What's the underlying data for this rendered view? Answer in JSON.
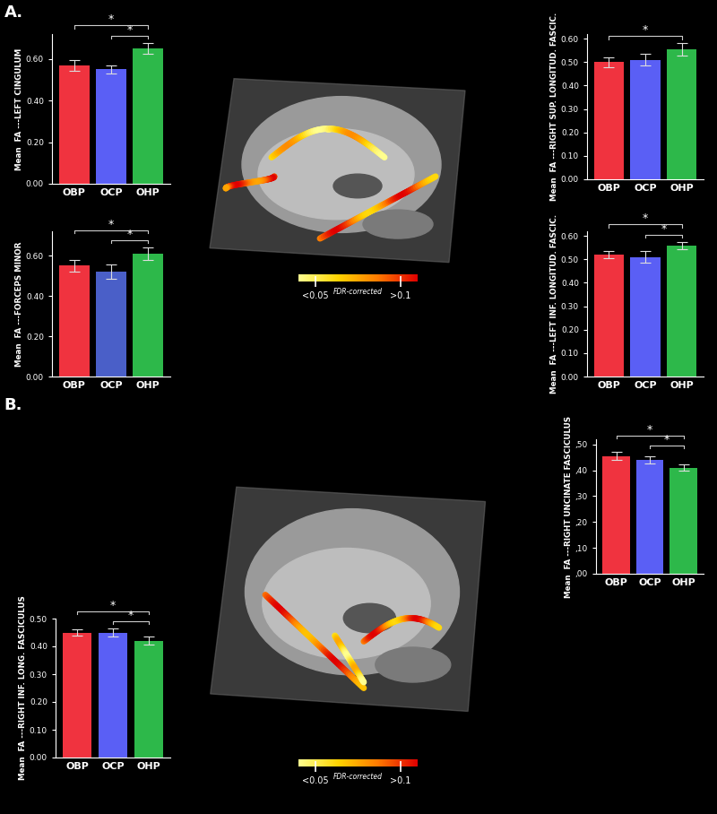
{
  "panels": [
    {
      "label": "A.",
      "colorbar": {
        "range": [
          0.04,
          0.11
        ],
        "ticks": [
          {
            "value": 0.05,
            "label": "<0.05"
          },
          {
            "value": 0.1,
            "label": ">0.1"
          }
        ],
        "label": "FDR-corrected"
      }
    },
    {
      "label": "B.",
      "colorbar": {
        "range": [
          0.04,
          0.11
        ],
        "ticks": [
          {
            "value": 0.05,
            "label": "<0.05"
          },
          {
            "value": 0.1,
            "label": ">0.1"
          }
        ],
        "label": "FDR-corrected"
      }
    }
  ],
  "chart_data": [
    {
      "type": "bar",
      "ylabel": "Mean  FA ---LEFT CINGULUM",
      "categories": [
        "OBP",
        "OCP",
        "OHP"
      ],
      "values": [
        0.57,
        0.55,
        0.65
      ],
      "errors": [
        0.025,
        0.02,
        0.025
      ],
      "colors": [
        "#f0333f",
        "#5a5ff5",
        "#2db84a"
      ],
      "ylim": [
        0,
        0.72
      ],
      "yticks": [
        {
          "value": 0,
          "label": "0.00"
        },
        {
          "value": 0.2,
          "label": "0.20"
        },
        {
          "value": 0.4,
          "label": "0.40"
        },
        {
          "value": 0.6,
          "label": "0.60"
        }
      ],
      "significance": [
        {
          "pair": [
            "OCP",
            "OHP"
          ],
          "text": "*"
        },
        {
          "pair": [
            "OBP",
            "OHP"
          ],
          "text": "*"
        }
      ],
      "grid": false
    },
    {
      "type": "bar",
      "ylabel": "Mean  FA ---FORCEPS MINOR",
      "categories": [
        "OBP",
        "OCP",
        "OHP"
      ],
      "values": [
        0.55,
        0.52,
        0.61
      ],
      "errors": [
        0.03,
        0.035,
        0.03
      ],
      "colors": [
        "#f0333f",
        "#4a5fc8",
        "#2db84a"
      ],
      "ylim": [
        0,
        0.72
      ],
      "yticks": [
        {
          "value": 0,
          "label": "0.00"
        },
        {
          "value": 0.2,
          "label": "0.20"
        },
        {
          "value": 0.4,
          "label": "0.40"
        },
        {
          "value": 0.6,
          "label": "0.60"
        }
      ],
      "significance": [
        {
          "pair": [
            "OCP",
            "OHP"
          ],
          "text": "*"
        },
        {
          "pair": [
            "OBP",
            "OHP"
          ],
          "text": "*"
        }
      ],
      "grid": false
    },
    {
      "type": "bar",
      "ylabel": "Mean  FA ---RIGHT SUP. LONGITUD. FASCIC.",
      "categories": [
        "OBP",
        "OCP",
        "OHP"
      ],
      "values": [
        0.5,
        0.51,
        0.555
      ],
      "errors": [
        0.02,
        0.025,
        0.025
      ],
      "colors": [
        "#f0333f",
        "#5a5ff5",
        "#2db84a"
      ],
      "ylim": [
        0,
        0.62
      ],
      "yticks": [
        {
          "value": 0,
          "label": "0.00"
        },
        {
          "value": 0.1,
          "label": "0.10"
        },
        {
          "value": 0.2,
          "label": "0.20"
        },
        {
          "value": 0.3,
          "label": "0.30"
        },
        {
          "value": 0.4,
          "label": "0.40"
        },
        {
          "value": 0.5,
          "label": "0.50"
        },
        {
          "value": 0.6,
          "label": "0.60"
        }
      ],
      "significance": [
        {
          "pair": [
            "OBP",
            "OHP"
          ],
          "text": "*"
        }
      ],
      "grid": false
    },
    {
      "type": "bar",
      "ylabel": "Mean  FA ---LEFT INF. LONGITUD. FASCIC.",
      "categories": [
        "OBP",
        "OCP",
        "OHP"
      ],
      "values": [
        0.52,
        0.51,
        0.56
      ],
      "errors": [
        0.015,
        0.025,
        0.015
      ],
      "colors": [
        "#f0333f",
        "#5a5ff5",
        "#2db84a"
      ],
      "ylim": [
        0,
        0.62
      ],
      "yticks": [
        {
          "value": 0,
          "label": "0.00"
        },
        {
          "value": 0.1,
          "label": "0.10"
        },
        {
          "value": 0.2,
          "label": "0.20"
        },
        {
          "value": 0.3,
          "label": "0.30"
        },
        {
          "value": 0.4,
          "label": "0.40"
        },
        {
          "value": 0.5,
          "label": "0.50"
        },
        {
          "value": 0.6,
          "label": "0.60"
        }
      ],
      "significance": [
        {
          "pair": [
            "OCP",
            "OHP"
          ],
          "text": "*"
        },
        {
          "pair": [
            "OBP",
            "OHP"
          ],
          "text": "*"
        }
      ],
      "grid": false
    },
    {
      "type": "bar",
      "ylabel": "Mean  FA ---RIGHT UNCINATE FASCICULUS",
      "categories": [
        "OBP",
        "OCP",
        "OHP"
      ],
      "values": [
        0.455,
        0.44,
        0.41
      ],
      "errors": [
        0.015,
        0.015,
        0.012
      ],
      "colors": [
        "#f0333f",
        "#5a5ff5",
        "#2db84a"
      ],
      "ylim": [
        0,
        0.52
      ],
      "yticks": [
        {
          "value": 0,
          "label": ",00"
        },
        {
          "value": 0.1,
          "label": ",10"
        },
        {
          "value": 0.2,
          "label": ",20"
        },
        {
          "value": 0.3,
          "label": ",30"
        },
        {
          "value": 0.4,
          "label": ",40"
        },
        {
          "value": 0.5,
          "label": ",50"
        }
      ],
      "significance": [
        {
          "pair": [
            "OCP",
            "OHP"
          ],
          "text": "*"
        },
        {
          "pair": [
            "OBP",
            "OHP"
          ],
          "text": "*"
        }
      ],
      "grid": false
    },
    {
      "type": "bar",
      "ylabel": "Mean  FA ---RIGHT INF. LONG. FASCICULUS",
      "categories": [
        "OBP",
        "OCP",
        "OHP"
      ],
      "values": [
        0.45,
        0.45,
        0.42
      ],
      "errors": [
        0.012,
        0.015,
        0.015
      ],
      "colors": [
        "#f0333f",
        "#5a5ff5",
        "#2db84a"
      ],
      "ylim": [
        0,
        0.5
      ],
      "yticks": [
        {
          "value": 0,
          "label": "0.00"
        },
        {
          "value": 0.1,
          "label": "0.10"
        },
        {
          "value": 0.2,
          "label": "0.20"
        },
        {
          "value": 0.3,
          "label": "0.30"
        },
        {
          "value": 0.4,
          "label": "0.40"
        },
        {
          "value": 0.5,
          "label": "0.50"
        }
      ],
      "significance": [
        {
          "pair": [
            "OCP",
            "OHP"
          ],
          "text": "*"
        },
        {
          "pair": [
            "OBP",
            "OHP"
          ],
          "text": "*"
        }
      ],
      "grid": false
    }
  ]
}
